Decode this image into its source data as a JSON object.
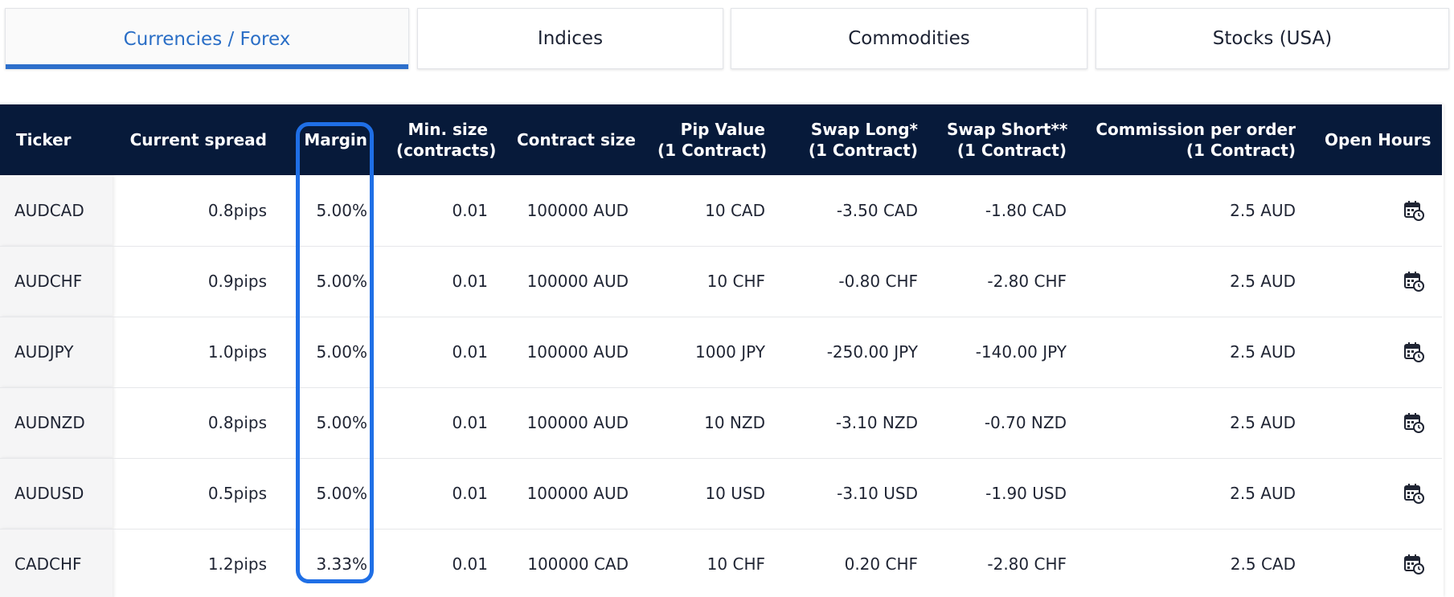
{
  "tabs": [
    {
      "label": "Currencies / Forex",
      "active": true
    },
    {
      "label": "Indices",
      "active": false
    },
    {
      "label": "Commodities",
      "active": false
    },
    {
      "label": "Stocks (USA)",
      "active": false
    }
  ],
  "table": {
    "headers": {
      "ticker": "Ticker",
      "spread": "Current spread",
      "margin": "Margin",
      "min_size_1": "Min. size",
      "min_size_2": "(contracts)",
      "contract_size": "Contract size",
      "pip_value_1": "Pip Value",
      "pip_value_2": "(1 Contract)",
      "swap_long_1": "Swap Long*",
      "swap_long_2": "(1 Contract)",
      "swap_short_1": "Swap Short**",
      "swap_short_2": "(1 Contract)",
      "commission_1": "Commission per order",
      "commission_2": "(1 Contract)",
      "open_hours": "Open Hours"
    },
    "rows": [
      {
        "ticker": "AUDCAD",
        "spread": "0.8pips",
        "margin": "5.00%",
        "min_size": "0.01",
        "contract_size": "100000 AUD",
        "pip_value": "10 CAD",
        "swap_long": "-3.50 CAD",
        "swap_short": "-1.80 CAD",
        "commission": "2.5 AUD"
      },
      {
        "ticker": "AUDCHF",
        "spread": "0.9pips",
        "margin": "5.00%",
        "min_size": "0.01",
        "contract_size": "100000 AUD",
        "pip_value": "10 CHF",
        "swap_long": "-0.80 CHF",
        "swap_short": "-2.80 CHF",
        "commission": "2.5 AUD"
      },
      {
        "ticker": "AUDJPY",
        "spread": "1.0pips",
        "margin": "5.00%",
        "min_size": "0.01",
        "contract_size": "100000 AUD",
        "pip_value": "1000 JPY",
        "swap_long": "-250.00 JPY",
        "swap_short": "-140.00 JPY",
        "commission": "2.5 AUD"
      },
      {
        "ticker": "AUDNZD",
        "spread": "0.8pips",
        "margin": "5.00%",
        "min_size": "0.01",
        "contract_size": "100000 AUD",
        "pip_value": "10 NZD",
        "swap_long": "-3.10 NZD",
        "swap_short": "-0.70 NZD",
        "commission": "2.5 AUD"
      },
      {
        "ticker": "AUDUSD",
        "spread": "0.5pips",
        "margin": "5.00%",
        "min_size": "0.01",
        "contract_size": "100000 AUD",
        "pip_value": "10 USD",
        "swap_long": "-3.10 USD",
        "swap_short": "-1.90 USD",
        "commission": "2.5 AUD"
      },
      {
        "ticker": "CADCHF",
        "spread": "1.2pips",
        "margin": "3.33%",
        "min_size": "0.01",
        "contract_size": "100000 CAD",
        "pip_value": "10 CHF",
        "swap_long": "0.20 CHF",
        "swap_short": "-2.80 CHF",
        "commission": "2.5 CAD"
      }
    ]
  },
  "icons": {
    "open_hours": "calendar-clock-icon"
  },
  "colors": {
    "header_bg": "#071a3a",
    "accent": "#2d6fcb",
    "highlight": "#1f6fe6"
  }
}
